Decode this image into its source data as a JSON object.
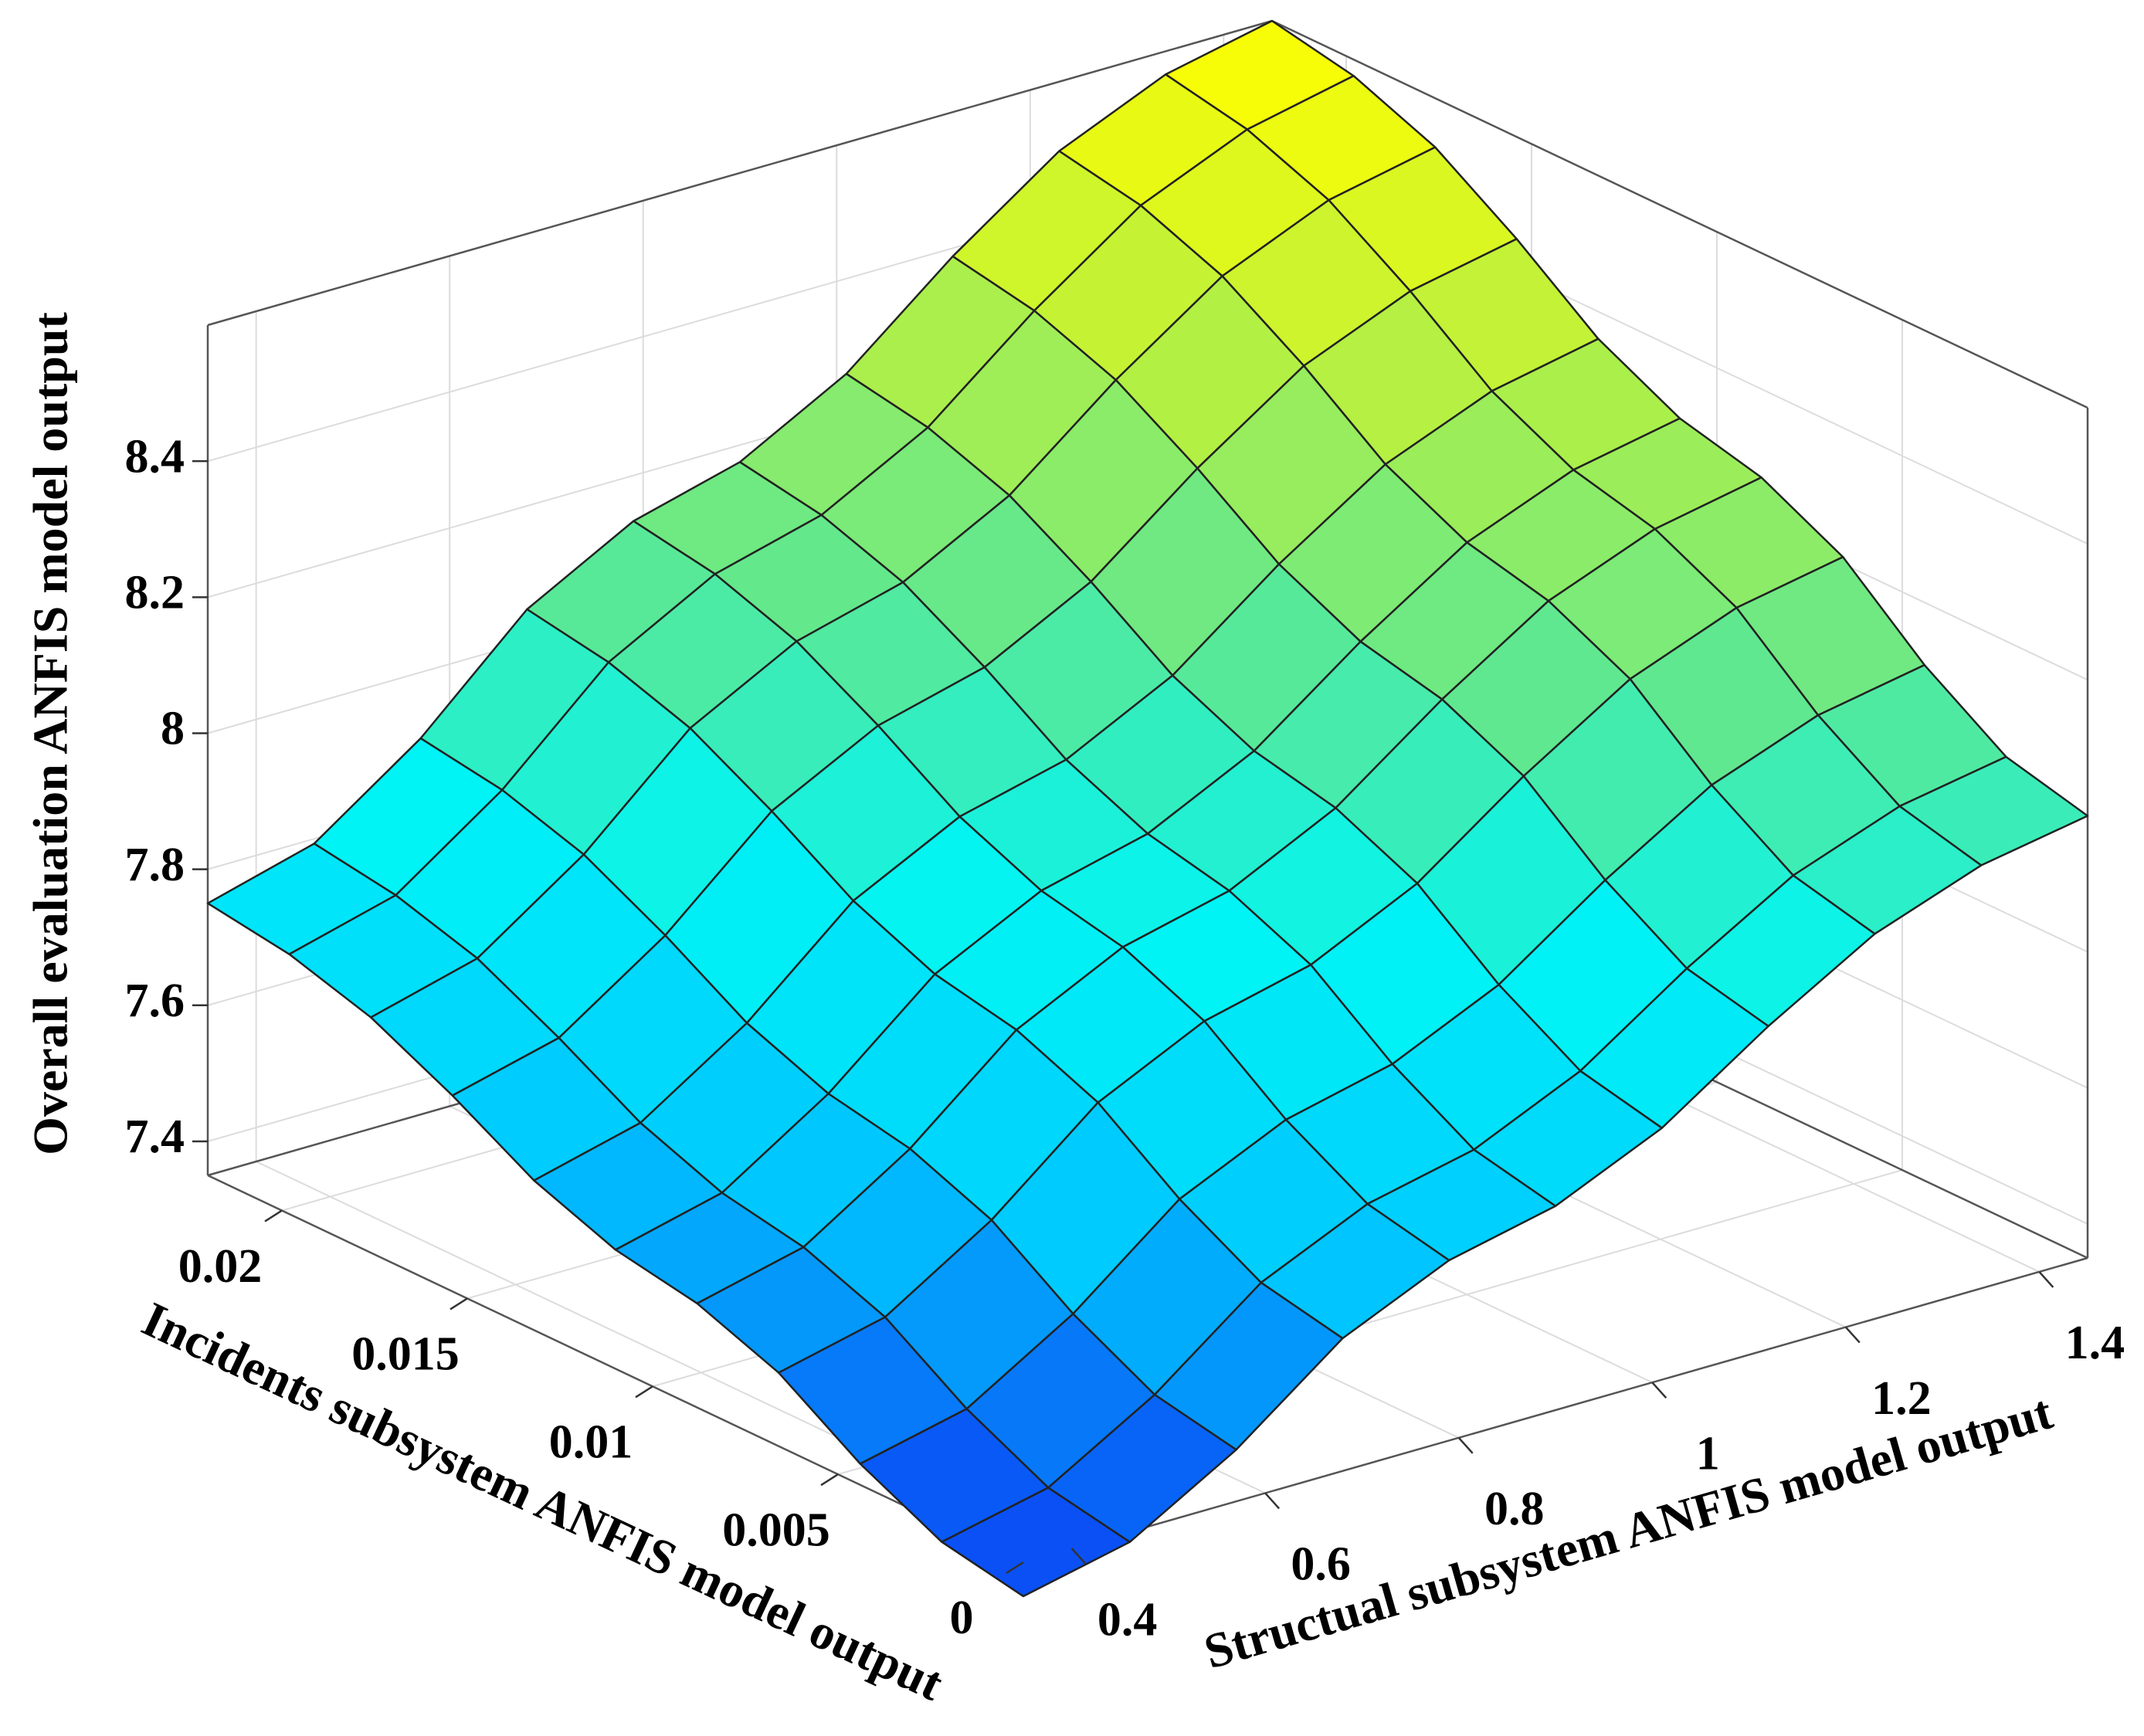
{
  "chart_data": {
    "type": "surface",
    "xlabel": "Structual subsystem ANFIS model output",
    "ylabel": "Incidents  subsystem ANFIS model output",
    "zlabel": "Overall evaluation ANFIS model output",
    "x": [
      0.35,
      0.46,
      0.57,
      0.68,
      0.79,
      0.9,
      1.01,
      1.12,
      1.23,
      1.34,
      1.45
    ],
    "y": [
      0,
      0.0022,
      0.0044,
      0.0066,
      0.0088,
      0.011,
      0.0132,
      0.0154,
      0.0176,
      0.0198,
      0.022
    ],
    "z": [
      [
        7.3,
        7.335,
        7.426,
        7.545,
        7.615,
        7.65,
        7.72,
        7.825,
        7.916,
        7.972,
        8.0
      ],
      [
        7.323,
        7.358,
        7.45,
        7.57,
        7.641,
        7.676,
        7.747,
        7.853,
        7.945,
        8.002,
        8.03
      ],
      [
        7.381,
        7.417,
        7.512,
        7.636,
        7.708,
        7.745,
        7.817,
        7.926,
        8.021,
        8.079,
        8.108
      ],
      [
        7.458,
        7.495,
        7.593,
        7.721,
        7.796,
        7.834,
        7.909,
        8.022,
        8.12,
        8.18,
        8.21
      ],
      [
        7.503,
        7.541,
        7.641,
        7.771,
        7.848,
        7.886,
        7.963,
        8.078,
        8.178,
        8.239,
        8.27
      ],
      [
        7.525,
        7.564,
        7.665,
        7.796,
        7.874,
        7.913,
        7.99,
        8.106,
        8.207,
        8.269,
        8.3
      ],
      [
        7.57,
        7.61,
        7.712,
        7.847,
        7.926,
        7.965,
        8.044,
        8.163,
        8.265,
        8.328,
        8.36
      ],
      [
        7.638,
        7.678,
        7.784,
        7.922,
        8.003,
        8.044,
        8.125,
        8.247,
        8.353,
        8.418,
        8.45
      ],
      [
        7.696,
        7.738,
        7.846,
        7.987,
        8.07,
        8.112,
        8.195,
        8.32,
        8.428,
        8.495,
        8.528
      ],
      [
        7.732,
        7.774,
        7.884,
        8.027,
        8.112,
        8.154,
        8.238,
        8.365,
        8.475,
        8.542,
        8.576
      ],
      [
        7.75,
        7.793,
        7.903,
        8.048,
        8.133,
        8.175,
        8.26,
        8.388,
        8.498,
        8.566,
        8.6
      ]
    ],
    "xlim": [
      0.35,
      1.45
    ],
    "ylim": [
      0,
      0.022
    ],
    "zlim": [
      7.35,
      8.6
    ],
    "xticks": [
      0.4,
      0.6,
      0.8,
      1,
      1.2,
      1.4
    ],
    "yticks": [
      0,
      0.005,
      0.01,
      0.015,
      0.02
    ],
    "zticks": [
      7.4,
      7.6,
      7.8,
      8,
      8.2,
      8.4
    ],
    "grid": true,
    "colormap": [
      "#0a50f5",
      "#00c8ff",
      "#00f5f5",
      "#60e890",
      "#b8f040",
      "#ffff00"
    ]
  }
}
